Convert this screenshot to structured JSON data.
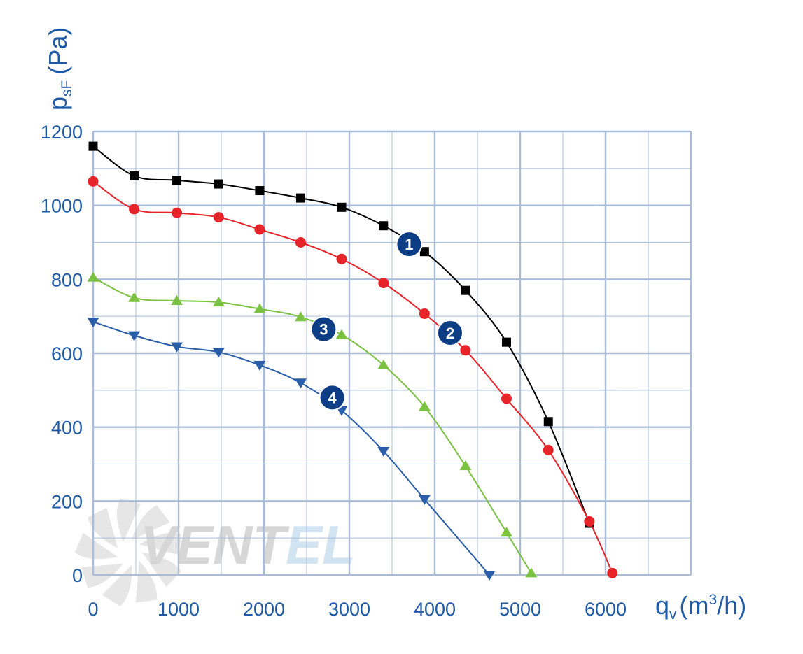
{
  "colors": {
    "axis_text": "#1f5aa6",
    "grid": "#a9bcd8",
    "series_1": "#000000",
    "series_2": "#e8242b",
    "series_3": "#7cc242",
    "series_4": "#2a5ea8",
    "badge": "#0d3d84"
  },
  "logo": {
    "text_main": "VENT",
    "text_accent": "EL"
  },
  "chart_data": {
    "type": "line",
    "ylabel": {
      "symbol": "p",
      "subscript": "sF",
      "unit": "(Pa)"
    },
    "xlabel": {
      "symbol": "q",
      "subscript": "v",
      "unit_pre": "(m",
      "unit_sup": "3",
      "unit_post": "/h)"
    },
    "xlim": [
      0,
      7000
    ],
    "ylim": [
      0,
      1200
    ],
    "xticks": [
      "0",
      "1000",
      "2000",
      "3000",
      "4000",
      "5000",
      "6000"
    ],
    "yticks": [
      "0",
      "200",
      "400",
      "600",
      "800",
      "1000",
      "1200"
    ],
    "grid": true,
    "series": [
      {
        "name": "1",
        "marker": "square",
        "x": [
          0,
          480,
          980,
          1470,
          1950,
          2430,
          2910,
          3400,
          3880,
          4360,
          4840,
          5330,
          5810
        ],
        "y": [
          1160,
          1080,
          1068,
          1058,
          1040,
          1020,
          995,
          945,
          875,
          770,
          630,
          415,
          140
        ]
      },
      {
        "name": "2",
        "marker": "circle",
        "x": [
          0,
          480,
          980,
          1470,
          1950,
          2430,
          2910,
          3400,
          3880,
          4360,
          4840,
          5330,
          5810,
          6080
        ],
        "y": [
          1065,
          990,
          980,
          968,
          935,
          900,
          855,
          790,
          707,
          608,
          477,
          338,
          145,
          5
        ]
      },
      {
        "name": "3",
        "marker": "triangle-up",
        "x": [
          0,
          480,
          980,
          1470,
          1950,
          2430,
          2910,
          3400,
          3880,
          4360,
          4840,
          5130
        ],
        "y": [
          805,
          750,
          742,
          738,
          720,
          698,
          650,
          568,
          455,
          295,
          115,
          5
        ]
      },
      {
        "name": "4",
        "marker": "triangle-down",
        "x": [
          0,
          480,
          980,
          1470,
          1950,
          2430,
          2910,
          3400,
          3880,
          4640
        ],
        "y": [
          685,
          648,
          618,
          603,
          568,
          520,
          445,
          335,
          205,
          0
        ]
      }
    ],
    "badges": [
      {
        "label": "1",
        "x": 3700,
        "y": 895
      },
      {
        "label": "2",
        "x": 4180,
        "y": 655
      },
      {
        "label": "3",
        "x": 2700,
        "y": 665
      },
      {
        "label": "4",
        "x": 2800,
        "y": 480
      }
    ]
  }
}
